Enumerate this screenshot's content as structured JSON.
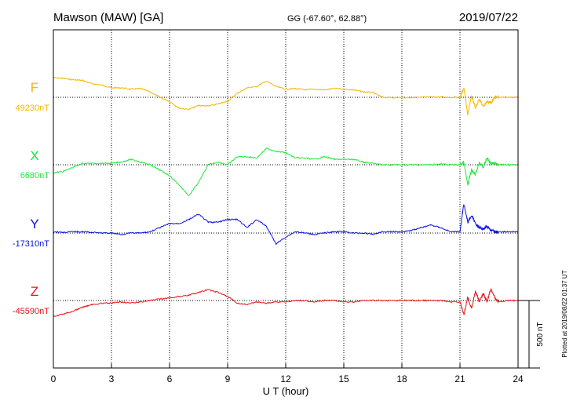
{
  "header": {
    "station": "Mawson (MAW)  [GA]",
    "coords": "GG (-67.60°,  62.88°)",
    "date": "2019/07/22"
  },
  "footer": {
    "plotted": "Plotted at 2019/08/22 01:37 UT"
  },
  "chart_data": {
    "type": "line",
    "xlabel": "U T (hour)",
    "xlim": [
      0,
      24
    ],
    "xticks": [
      "0",
      "3",
      "6",
      "9",
      "12",
      "15",
      "18",
      "21",
      "24"
    ],
    "scale_bar": {
      "label": "500 nT",
      "value": 500,
      "unit": "nT"
    },
    "x": [
      0,
      0.5,
      1,
      1.5,
      2,
      2.5,
      3,
      3.5,
      4,
      4.5,
      5,
      5.5,
      6,
      6.5,
      7,
      7.5,
      8,
      8.5,
      9,
      9.5,
      10,
      10.5,
      11,
      11.5,
      12,
      12.5,
      13,
      13.5,
      14,
      14.5,
      15,
      15.5,
      16,
      16.5,
      17,
      17.5,
      18,
      18.5,
      19,
      19.5,
      20,
      20.5,
      21,
      21.2,
      21.4,
      21.6,
      21.8,
      22,
      22.2,
      22.4,
      22.6,
      22.8,
      23,
      23.5,
      24
    ],
    "series": [
      {
        "name": "F",
        "baseline_label": "49230nT",
        "color": "#f5b800",
        "values": [
          49375,
          49370,
          49360,
          49355,
          49330,
          49320,
          49300,
          49300,
          49290,
          49295,
          49270,
          49230,
          49200,
          49150,
          49140,
          49170,
          49165,
          49180,
          49200,
          49260,
          49300,
          49310,
          49350,
          49310,
          49290,
          49295,
          49285,
          49290,
          49285,
          49295,
          49290,
          49285,
          49270,
          49265,
          49230,
          49228,
          49228,
          49228,
          49230,
          49232,
          49232,
          49230,
          49230,
          49300,
          49100,
          49240,
          49150,
          49220,
          49160,
          49200,
          49190,
          49230,
          49230,
          49230,
          49230
        ]
      },
      {
        "name": "X",
        "baseline_label": "6680nT",
        "color": "#1ee83a",
        "values": [
          6620,
          6630,
          6660,
          6690,
          6690,
          6690,
          6690,
          6700,
          6720,
          6700,
          6680,
          6640,
          6600,
          6530,
          6450,
          6550,
          6680,
          6700,
          6680,
          6740,
          6740,
          6730,
          6800,
          6780,
          6770,
          6730,
          6730,
          6720,
          6740,
          6720,
          6720,
          6720,
          6700,
          6690,
          6680,
          6680,
          6680,
          6680,
          6680,
          6680,
          6685,
          6680,
          6680,
          6700,
          6530,
          6640,
          6610,
          6700,
          6660,
          6730,
          6690,
          6690,
          6680,
          6680,
          6680
        ]
      },
      {
        "name": "Y",
        "baseline_label": "-17310nT",
        "color": "#0d12e6",
        "values": [
          -17300,
          -17305,
          -17300,
          -17300,
          -17305,
          -17310,
          -17310,
          -17320,
          -17310,
          -17310,
          -17300,
          -17270,
          -17240,
          -17240,
          -17210,
          -17170,
          -17230,
          -17230,
          -17210,
          -17210,
          -17270,
          -17210,
          -17260,
          -17390,
          -17340,
          -17300,
          -17310,
          -17320,
          -17310,
          -17300,
          -17300,
          -17310,
          -17310,
          -17320,
          -17300,
          -17300,
          -17300,
          -17290,
          -17270,
          -17250,
          -17270,
          -17300,
          -17300,
          -17090,
          -17230,
          -17180,
          -17240,
          -17270,
          -17280,
          -17260,
          -17290,
          -17300,
          -17300,
          -17300,
          -17300
        ]
      },
      {
        "name": "Z",
        "baseline_label": "-45590nT",
        "color": "#e6141a",
        "values": [
          -45710,
          -45690,
          -45670,
          -45640,
          -45620,
          -45610,
          -45610,
          -45600,
          -45610,
          -45600,
          -45590,
          -45580,
          -45570,
          -45560,
          -45550,
          -45530,
          -45510,
          -45530,
          -45560,
          -45610,
          -45620,
          -45600,
          -45610,
          -45600,
          -45600,
          -45590,
          -45590,
          -45600,
          -45590,
          -45590,
          -45600,
          -45600,
          -45590,
          -45590,
          -45590,
          -45590,
          -45590,
          -45590,
          -45590,
          -45590,
          -45590,
          -45600,
          -45600,
          -45700,
          -45560,
          -45650,
          -45520,
          -45600,
          -45540,
          -45600,
          -45500,
          -45570,
          -45600,
          -45590,
          -45590
        ]
      }
    ]
  }
}
